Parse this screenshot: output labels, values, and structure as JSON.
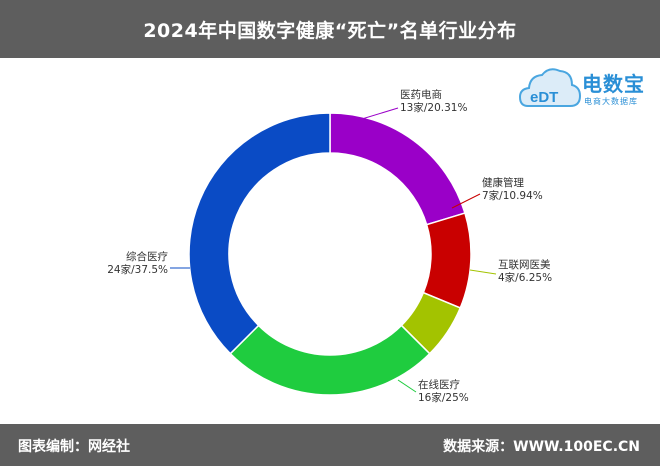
{
  "header": {
    "title": "2024年中国数字健康“死亡”名单行业分布"
  },
  "logo": {
    "name": "电数宝",
    "tagline": "电商大数据库",
    "mark": "eDT"
  },
  "footer": {
    "left": "图表编制：网经社",
    "right": "数据来源：WWW.100EC.CN"
  },
  "chart_data": {
    "type": "pie",
    "title": "2024年中国数字健康“死亡”名单行业分布",
    "slices": [
      {
        "name": "医药电商",
        "value": 13,
        "label": "13家/20.31%",
        "color": "#9a00c8"
      },
      {
        "name": "健康管理",
        "value": 7,
        "label": "7家/10.94%",
        "color": "#c90000"
      },
      {
        "name": "互联网医美",
        "value": 4,
        "label": "4家/6.25%",
        "color": "#a3c300"
      },
      {
        "name": "在线医疗",
        "value": 16,
        "label": "16家/25%",
        "color": "#1fcc3f"
      },
      {
        "name": "综合医疗",
        "value": 24,
        "label": "24家/37.5%",
        "color": "#0a4bc5"
      }
    ]
  }
}
